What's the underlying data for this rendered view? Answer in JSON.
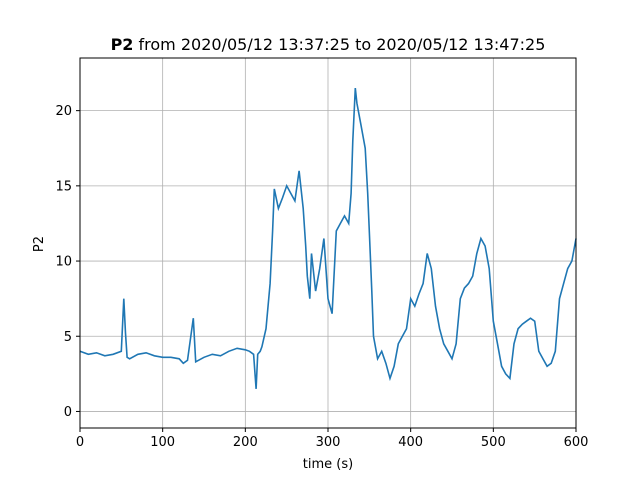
{
  "chart_data": {
    "type": "line",
    "title": {
      "bold": "P2",
      "rest": " from 2020/05/12 13:37:25 to 2020/05/12 13:47:25"
    },
    "xlabel": "time (s)",
    "ylabel": "P2",
    "xlim": [
      0,
      600
    ],
    "ylim": [
      -1.1,
      23.5
    ],
    "xticks": [
      0,
      100,
      200,
      300,
      400,
      500,
      600
    ],
    "yticks": [
      0,
      5,
      10,
      15,
      20
    ],
    "grid": true,
    "line_color": "#1f77b4",
    "series": [
      {
        "x": [
          0,
          10,
          20,
          30,
          40,
          50,
          53,
          55,
          57,
          60,
          70,
          80,
          90,
          100,
          110,
          120,
          125,
          130,
          137,
          140,
          150,
          160,
          170,
          180,
          190,
          200,
          205,
          210,
          213,
          215,
          218,
          220,
          225,
          230,
          233,
          235,
          240,
          245,
          250,
          255,
          260,
          265,
          270,
          273,
          275,
          278,
          280,
          285,
          290,
          295,
          300,
          305,
          310,
          315,
          320,
          325,
          328,
          330,
          333,
          335,
          340,
          345,
          348,
          350,
          353,
          355,
          360,
          365,
          370,
          375,
          380,
          385,
          390,
          395,
          400,
          405,
          410,
          415,
          420,
          425,
          430,
          435,
          440,
          445,
          450,
          455,
          460,
          465,
          470,
          475,
          480,
          485,
          490,
          495,
          500,
          505,
          510,
          515,
          520,
          525,
          530,
          535,
          540,
          545,
          550,
          555,
          560,
          565,
          570,
          575,
          580,
          585,
          590,
          595,
          600
        ],
        "values": [
          4.0,
          3.8,
          3.9,
          3.7,
          3.8,
          4.0,
          7.5,
          5.2,
          3.6,
          3.5,
          3.8,
          3.9,
          3.7,
          3.6,
          3.6,
          3.5,
          3.2,
          3.4,
          6.2,
          3.3,
          3.6,
          3.8,
          3.7,
          4.0,
          4.2,
          4.1,
          4.0,
          3.8,
          1.5,
          3.8,
          4.0,
          4.3,
          5.5,
          8.5,
          12.0,
          14.8,
          13.5,
          14.2,
          15.0,
          14.5,
          14.0,
          16.0,
          13.5,
          11.0,
          9.0,
          7.5,
          10.5,
          8.0,
          9.5,
          11.5,
          7.5,
          6.5,
          12.0,
          12.5,
          13.0,
          12.5,
          14.5,
          18.0,
          21.5,
          20.5,
          19.0,
          17.5,
          14.5,
          12.0,
          8.0,
          5.0,
          3.5,
          4.0,
          3.2,
          2.2,
          3.0,
          4.5,
          5.0,
          5.5,
          7.5,
          7.0,
          7.8,
          8.5,
          10.5,
          9.5,
          7.0,
          5.5,
          4.5,
          4.0,
          3.5,
          4.5,
          7.5,
          8.2,
          8.5,
          9.0,
          10.5,
          11.5,
          11.0,
          9.5,
          6.0,
          4.5,
          3.0,
          2.5,
          2.2,
          4.5,
          5.5,
          5.8,
          6.0,
          6.2,
          6.0,
          4.0,
          3.5,
          3.0,
          3.2,
          4.0,
          7.5,
          8.5,
          9.5,
          10.0,
          11.5
        ]
      }
    ]
  }
}
